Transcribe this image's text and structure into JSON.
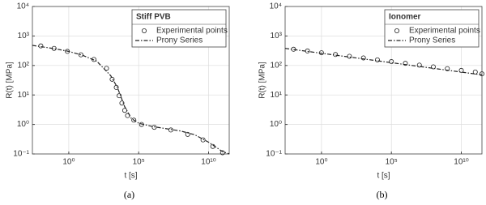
{
  "chart_data": [
    {
      "type": "line",
      "legend_title": "Stiff PVB",
      "caption": "(a)",
      "xlabel": "t [s]",
      "ylabel": "R(t) [MPa]",
      "log_x": true,
      "log_y": true,
      "grid": true,
      "legend": "upper right",
      "xlim": [
        0.0025,
        300000000000
      ],
      "ylim": [
        0.1,
        10000
      ],
      "xticks": [
        {
          "value": 1,
          "label": "10⁰"
        },
        {
          "value": 100000,
          "label": "10⁵"
        },
        {
          "value": 10000000000,
          "label": "10¹⁰"
        }
      ],
      "yticks": [
        {
          "value": 0.1,
          "label": "10⁻¹"
        },
        {
          "value": 1,
          "label": "10⁰"
        },
        {
          "value": 10,
          "label": "10¹"
        },
        {
          "value": 100,
          "label": "10²"
        },
        {
          "value": 1000,
          "label": "10³"
        },
        {
          "value": 10000,
          "label": "10⁴"
        }
      ],
      "series": [
        {
          "name": "Experimental points",
          "color": "#222",
          "style": "markers",
          "x": [
            0.01,
            0.089,
            0.79,
            7.4,
            63,
            500,
            1260,
            2500,
            4000,
            6300,
            10000,
            16000,
            45000,
            160000,
            1300000,
            20000000,
            320000000,
            4000000000,
            20000000000,
            100000000000
          ],
          "values": [
            460,
            380,
            300,
            230,
            160,
            80,
            34,
            18,
            9.4,
            5.3,
            3,
            2,
            1.4,
            1,
            0.8,
            0.65,
            0.46,
            0.3,
            0.18,
            0.11
          ]
        },
        {
          "name": "Prony Series",
          "color": "#222",
          "style": "dashdot",
          "x": [
            0.0025,
            0.1,
            1,
            10,
            100,
            1000,
            3000,
            10000,
            30000,
            100000,
            1000000,
            100000000,
            1000000000,
            10000000000,
            100000000000,
            300000000000
          ],
          "values": [
            480,
            370,
            300,
            220,
            140,
            45,
            18,
            4,
            1.6,
            1.1,
            0.85,
            0.6,
            0.45,
            0.25,
            0.12,
            0.1
          ]
        }
      ]
    },
    {
      "type": "line",
      "legend_title": "Ionomer",
      "caption": "(b)",
      "xlabel": "t [s]",
      "ylabel": "R(t) [MPa]",
      "log_x": true,
      "log_y": true,
      "grid": true,
      "legend": "upper right",
      "xlim": [
        0.0025,
        300000000000
      ],
      "ylim": [
        0.1,
        10000
      ],
      "xticks": [
        {
          "value": 1,
          "label": "10⁰"
        },
        {
          "value": 100000,
          "label": "10⁵"
        },
        {
          "value": 10000000000,
          "label": "10¹⁰"
        }
      ],
      "yticks": [
        {
          "value": 0.1,
          "label": "10⁻¹"
        },
        {
          "value": 1,
          "label": "10⁰"
        },
        {
          "value": 10,
          "label": "10¹"
        },
        {
          "value": 100,
          "label": "10²"
        },
        {
          "value": 1000,
          "label": "10³"
        },
        {
          "value": 10000,
          "label": "10⁴"
        }
      ],
      "series": [
        {
          "name": "Experimental points",
          "color": "#222",
          "style": "markers",
          "x": [
            0.01,
            0.1,
            1,
            10,
            100,
            1000,
            10000,
            100000,
            1000000,
            10000000,
            100000000,
            1000000000,
            10000000000,
            100000000000,
            300000000000
          ],
          "values": [
            355,
            310,
            270,
            235,
            205,
            180,
            155,
            135,
            118,
            103,
            90,
            78,
            68,
            60,
            52
          ]
        },
        {
          "name": "Prony Series",
          "color": "#222",
          "style": "dashdot",
          "x": [
            0.0025,
            300000000000
          ],
          "values": [
            380,
            48
          ]
        }
      ]
    }
  ]
}
